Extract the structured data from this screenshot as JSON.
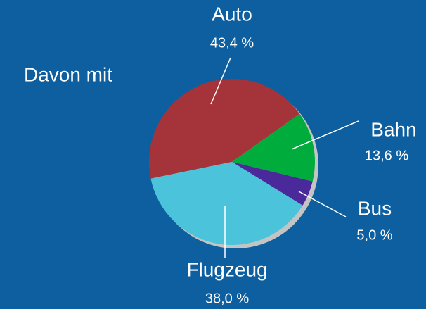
{
  "chart_data": {
    "type": "pie",
    "title": "Davon mit",
    "categories": [
      "Auto",
      "Bahn",
      "Bus",
      "Flugzeug"
    ],
    "values": [
      43.4,
      13.6,
      5.0,
      38.0
    ],
    "value_labels": [
      "43,4 %",
      "13,6 %",
      "5,0 %",
      "38,0 %"
    ],
    "colors": [
      "#a5343a",
      "#00ad3c",
      "#4a2a9a",
      "#4bc3db"
    ]
  }
}
